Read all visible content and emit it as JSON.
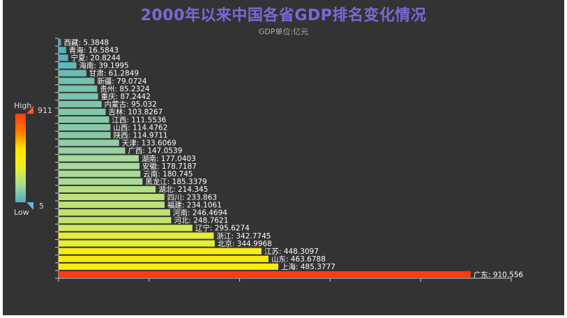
{
  "title": "2000年以来中国各省GDP排名变化情况",
  "subtitle": "GDP单位:亿元",
  "visual_map": {
    "high_label": "High",
    "low_label": "Low",
    "max": 911,
    "min": 5,
    "max_text": "911",
    "min_text": "5",
    "colors": [
      "#50a3ba",
      "#eac736",
      "#ff0000",
      "#d94e5d"
    ]
  },
  "chart_data": {
    "type": "bar",
    "orientation": "horizontal",
    "title": "2000年以来中国各省GDP排名变化情况",
    "subtitle": "GDP单位:亿元",
    "xlim": [
      0,
      1000
    ],
    "categories": [
      "西藏",
      "青海",
      "宁夏",
      "海南",
      "甘肃",
      "新疆",
      "贵州",
      "重庆",
      "内蒙古",
      "吉林",
      "江西",
      "山西",
      "陕西",
      "天津",
      "广西",
      "湖南",
      "安徽",
      "云南",
      "黑龙江",
      "湖北",
      "四川",
      "福建",
      "河南",
      "河北",
      "辽宁",
      "浙江",
      "北京",
      "江苏",
      "山东",
      "上海",
      "广东"
    ],
    "values": [
      5.3848,
      16.5843,
      20.8244,
      39.1995,
      61.2849,
      79.0724,
      85.2324,
      87.2442,
      95.032,
      103.8267,
      111.5536,
      114.4762,
      114.9711,
      133.6069,
      147.0539,
      177.0403,
      178.7187,
      180.745,
      185.3379,
      214.345,
      233.863,
      234.1061,
      246.4694,
      248.7621,
      295.6274,
      342.7745,
      344.9968,
      448.3097,
      463.6788,
      485.3777,
      910.556
    ],
    "labels": [
      "西藏: 5.3848",
      "青海: 16.5843",
      "宁夏: 20.8244",
      "海南: 39.1995",
      "甘肃: 61.2849",
      "新疆: 79.0724",
      "贵州: 85.2324",
      "重庆: 87.2442",
      "内蒙古: 95.032",
      "吉林: 103.8267",
      "江西: 111.5536",
      "山西: 114.4762",
      "陕西: 114.9711",
      "天津: 133.6069",
      "广西: 147.0539",
      "湖南: 177.0403",
      "安徽: 178.7187",
      "云南: 180.745",
      "黑龙江: 185.3379",
      "湖北: 214.345",
      "四川: 233.863",
      "福建: 234.1061",
      "河南: 246.4694",
      "河北: 248.7621",
      "辽宁: 295.6274",
      "浙江: 342.7745",
      "北京: 344.9968",
      "江苏: 448.3097",
      "山东: 463.6788",
      "上海: 485.3777",
      "广东: 910.556"
    ]
  }
}
